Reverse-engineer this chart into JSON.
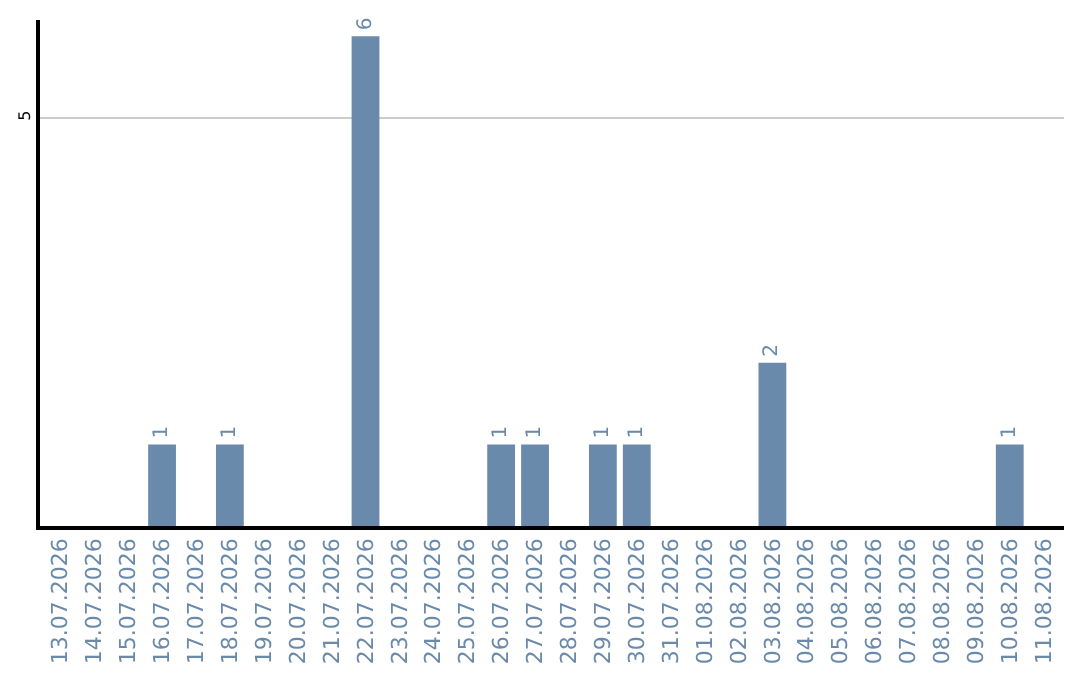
{
  "chart_data": {
    "type": "bar",
    "categories": [
      "13.07.2026",
      "14.07.2026",
      "15.07.2026",
      "16.07.2026",
      "17.07.2026",
      "18.07.2026",
      "19.07.2026",
      "20.07.2026",
      "21.07.2026",
      "22.07.2026",
      "23.07.2026",
      "24.07.2026",
      "25.07.2026",
      "26.07.2026",
      "27.07.2026",
      "28.07.2026",
      "29.07.2026",
      "30.07.2026",
      "31.07.2026",
      "01.08.2026",
      "02.08.2026",
      "03.08.2026",
      "04.08.2026",
      "05.08.2026",
      "06.08.2026",
      "07.08.2026",
      "08.08.2026",
      "09.08.2026",
      "10.08.2026",
      "11.08.2026"
    ],
    "values": [
      0,
      0,
      0,
      1,
      0,
      1,
      0,
      0,
      0,
      6,
      0,
      0,
      0,
      1,
      1,
      0,
      1,
      1,
      0,
      0,
      0,
      2,
      0,
      0,
      0,
      0,
      0,
      0,
      1,
      0
    ],
    "value_labels": [
      null,
      null,
      null,
      "1",
      null,
      "1",
      null,
      null,
      null,
      "6",
      null,
      null,
      null,
      "1",
      "1",
      null,
      "1",
      "1",
      null,
      null,
      null,
      "2",
      null,
      null,
      null,
      null,
      null,
      null,
      "1",
      null
    ],
    "color": "#6a8aab",
    "ylim": [
      0,
      6.2
    ],
    "yticks": [
      5
    ],
    "grid": "y",
    "legend": false
  }
}
